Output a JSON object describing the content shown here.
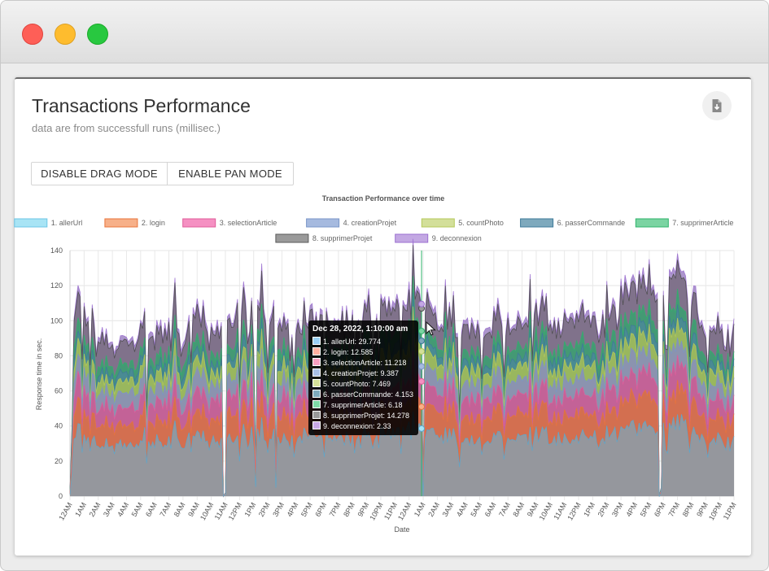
{
  "card": {
    "title": "Transactions Performance",
    "subtitle": "data are from successfull runs (millisec.)",
    "download_icon": "download-file-icon"
  },
  "toolbar": {
    "drag_label": "DISABLE DRAG MODE",
    "pan_label": "ENABLE PAN MODE"
  },
  "tooltip": {
    "title": "Dec 28, 2022, 1:10:00 am",
    "rows": [
      {
        "text": "1. allerUrl: 29.774",
        "color": "#9ad0f5"
      },
      {
        "text": "2. login: 12.585",
        "color": "#ffb1a1"
      },
      {
        "text": "3. selectionArticle: 11.218",
        "color": "#f7a0c0"
      },
      {
        "text": "4. creationProjet: 9.387",
        "color": "#a9c0e6"
      },
      {
        "text": "5. countPhoto: 7.469",
        "color": "#d7e29a"
      },
      {
        "text": "6. passerCommande: 4.153",
        "color": "#7ea9bd"
      },
      {
        "text": "7. supprimerArticle: 6.18",
        "color": "#7ed9a6"
      },
      {
        "text": "8. supprimerProjet: 14.278",
        "color": "#9a9a9a"
      },
      {
        "text": "9. deconnexion: 2.33",
        "color": "#c8a8e6"
      }
    ]
  },
  "chart_data": {
    "type": "area",
    "stacked": true,
    "title": "Transaction Performance over time",
    "xlabel": "Date",
    "ylabel": "Response time in sec.",
    "ylim": [
      0,
      140
    ],
    "yticks": [
      0,
      20,
      40,
      60,
      80,
      100,
      120,
      140
    ],
    "grid": true,
    "legend_position": "top",
    "x_tick_labels": [
      "12AM",
      "1AM",
      "2AM",
      "3AM",
      "4AM",
      "5AM",
      "6AM",
      "7AM",
      "8AM",
      "9AM",
      "10AM",
      "11AM",
      "12PM",
      "1PM",
      "2PM",
      "3PM",
      "4PM",
      "5PM",
      "6PM",
      "7PM",
      "8PM",
      "9PM",
      "10PM",
      "11PM",
      "12AM",
      "1AM",
      "2AM",
      "3AM",
      "4AM",
      "5AM",
      "6AM",
      "7AM",
      "8AM",
      "9AM",
      "10AM",
      "11AM",
      "12PM",
      "1PM",
      "2PM",
      "3PM",
      "4PM",
      "5PM",
      "6PM",
      "7PM",
      "8PM",
      "9PM",
      "10PM",
      "11PM"
    ],
    "series": [
      {
        "name": "1. allerUrl",
        "color": "#5aa8cf",
        "fill": "#8f9aa4",
        "legend_fill": "#a8e4f5",
        "legend_stroke": "#6cc6e6",
        "base": 31,
        "amp": 4
      },
      {
        "name": "2. login",
        "color": "#e8743b",
        "fill": "#d5704a",
        "legend_fill": "#f7b089",
        "legend_stroke": "#e8743b",
        "base": 12.5,
        "amp": 2.5
      },
      {
        "name": "3. selectionArticle",
        "color": "#e05c9a",
        "fill": "#c85d95",
        "legend_fill": "#f590c2",
        "legend_stroke": "#e05c9a",
        "base": 10.5,
        "amp": 2
      },
      {
        "name": "4. creationProjet",
        "color": "#7a96c8",
        "fill": "#8a8fb6",
        "legend_fill": "#a6badf",
        "legend_stroke": "#7a96c8",
        "base": 8.5,
        "amp": 1.5
      },
      {
        "name": "5. countPhoto",
        "color": "#b5c95a",
        "fill": "#9fbb59",
        "legend_fill": "#d3df9a",
        "legend_stroke": "#b5c95a",
        "base": 7,
        "amp": 1.5
      },
      {
        "name": "6. passerCommande",
        "color": "#3d7a99",
        "fill": "#4b8a96",
        "legend_fill": "#7ea9bd",
        "legend_stroke": "#3d7a99",
        "base": 4.5,
        "amp": 1.5
      },
      {
        "name": "7. supprimerArticle",
        "color": "#2fb36b",
        "fill": "#3f9c72",
        "legend_fill": "#7bd4a2",
        "legend_stroke": "#2fb36b",
        "base": 5.5,
        "amp": 1.5
      },
      {
        "name": "8. supprimerProjet",
        "color": "#4a4a4a",
        "fill": "#7c6f86",
        "legend_fill": "#9a9a9a",
        "legend_stroke": "#5a5a5a",
        "base": 13,
        "amp": 2.5
      },
      {
        "name": "9. deconnexion",
        "color": "#9b6fd0",
        "fill": "#a58cc8",
        "legend_fill": "#c3a8e3",
        "legend_stroke": "#9b6fd0",
        "base": 2.5,
        "amp": 1
      }
    ],
    "totals_profile": [
      {
        "t": 0,
        "v": 2
      },
      {
        "t": 0.3,
        "v": 95
      },
      {
        "t": 0.6,
        "v": 125
      },
      {
        "t": 1,
        "v": 110
      },
      {
        "t": 1.5,
        "v": 100
      },
      {
        "t": 2,
        "v": 90
      },
      {
        "t": 8,
        "v": 95
      },
      {
        "t": 9.1,
        "v": 108
      },
      {
        "t": 10,
        "v": 96
      },
      {
        "t": 12.3,
        "v": 110
      },
      {
        "t": 14,
        "v": 100
      },
      {
        "t": 18,
        "v": 101
      },
      {
        "t": 21.5,
        "v": 104
      },
      {
        "t": 24.5,
        "v": 118
      },
      {
        "t": 26,
        "v": 100
      },
      {
        "t": 30,
        "v": 98
      },
      {
        "t": 34,
        "v": 104
      },
      {
        "t": 38,
        "v": 98
      },
      {
        "t": 40.2,
        "v": 126
      },
      {
        "t": 42,
        "v": 115
      },
      {
        "t": 43,
        "v": 131
      },
      {
        "t": 45,
        "v": 98
      },
      {
        "t": 47.9,
        "v": 92
      }
    ],
    "dips": [
      {
        "t": 10.9,
        "v": 0
      },
      {
        "t": 11.0,
        "v": 2
      },
      {
        "t": 13.2,
        "v": 18
      },
      {
        "t": 14.6,
        "v": 16
      },
      {
        "t": 25.0,
        "v": 0
      },
      {
        "t": 41.7,
        "v": 0
      },
      {
        "t": 41.8,
        "v": 5
      },
      {
        "t": 47.9,
        "v": 3
      }
    ],
    "hover_x": "Dec 28, 2022, 1:10:00 am"
  }
}
